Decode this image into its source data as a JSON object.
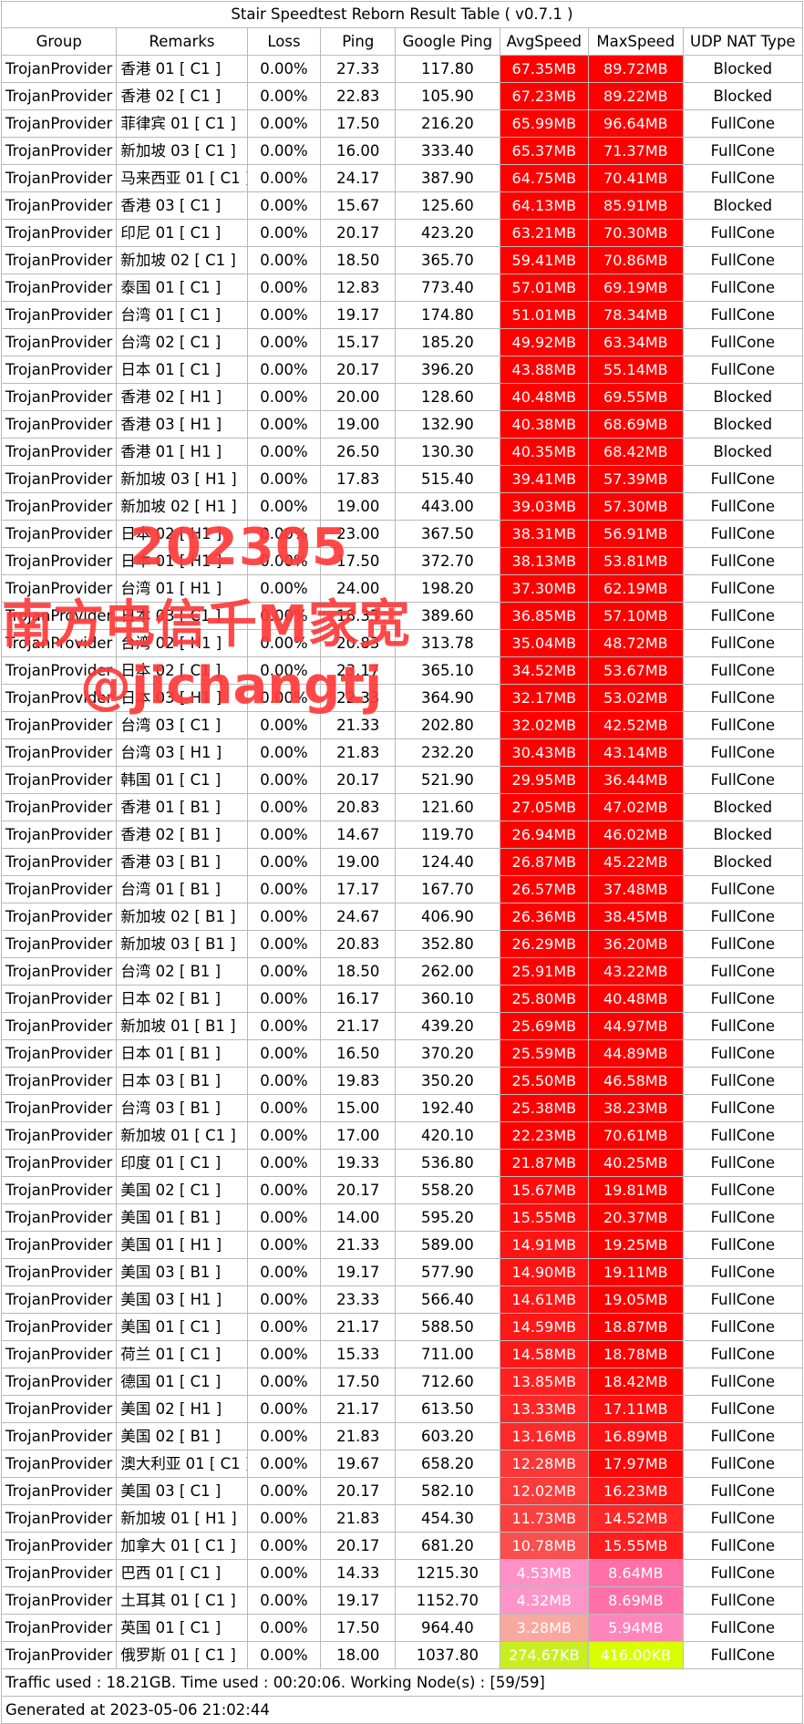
{
  "title": "Stair Speedtest Reborn Result Table ( v0.7.1 )",
  "headers": [
    "Group",
    "Remarks",
    "Loss",
    "Ping",
    "Google Ping",
    "AvgSpeed",
    "MaxSpeed",
    "UDP NAT Type"
  ],
  "rows": [
    {
      "group": "TrojanProvider",
      "remarks": "香港 01 [ C1 ]",
      "loss": "0.00%",
      "ping": "27.33",
      "gping": "117.80",
      "avg": "67.35MB",
      "avg_color": "#ff0000",
      "max": "89.72MB",
      "max_color": "#ff0000",
      "nat": "Blocked"
    },
    {
      "group": "TrojanProvider",
      "remarks": "香港 02 [ C1 ]",
      "loss": "0.00%",
      "ping": "22.83",
      "gping": "105.90",
      "avg": "67.23MB",
      "avg_color": "#ff0000",
      "max": "89.22MB",
      "max_color": "#ff0000",
      "nat": "Blocked"
    },
    {
      "group": "TrojanProvider",
      "remarks": "菲律宾 01 [ C1 ]",
      "loss": "0.00%",
      "ping": "17.50",
      "gping": "216.20",
      "avg": "65.99MB",
      "avg_color": "#ff0000",
      "max": "96.64MB",
      "max_color": "#ff0000",
      "nat": "FullCone"
    },
    {
      "group": "TrojanProvider",
      "remarks": "新加坡 03 [ C1 ]",
      "loss": "0.00%",
      "ping": "16.00",
      "gping": "333.40",
      "avg": "65.37MB",
      "avg_color": "#ff0000",
      "max": "71.37MB",
      "max_color": "#ff0000",
      "nat": "FullCone"
    },
    {
      "group": "TrojanProvider",
      "remarks": "马来西亚 01 [ C1 ]",
      "loss": "0.00%",
      "ping": "24.17",
      "gping": "387.90",
      "avg": "64.75MB",
      "avg_color": "#ff0000",
      "max": "70.41MB",
      "max_color": "#ff0000",
      "nat": "FullCone"
    },
    {
      "group": "TrojanProvider",
      "remarks": "香港 03 [ C1 ]",
      "loss": "0.00%",
      "ping": "15.67",
      "gping": "125.60",
      "avg": "64.13MB",
      "avg_color": "#ff0000",
      "max": "85.91MB",
      "max_color": "#ff0000",
      "nat": "Blocked"
    },
    {
      "group": "TrojanProvider",
      "remarks": "印尼 01 [ C1 ]",
      "loss": "0.00%",
      "ping": "20.17",
      "gping": "423.20",
      "avg": "63.21MB",
      "avg_color": "#ff0000",
      "max": "70.30MB",
      "max_color": "#ff0000",
      "nat": "FullCone"
    },
    {
      "group": "TrojanProvider",
      "remarks": "新加坡 02 [ C1 ]",
      "loss": "0.00%",
      "ping": "18.50",
      "gping": "365.70",
      "avg": "59.41MB",
      "avg_color": "#ff0000",
      "max": "70.86MB",
      "max_color": "#ff0000",
      "nat": "FullCone"
    },
    {
      "group": "TrojanProvider",
      "remarks": "泰国 01 [ C1 ]",
      "loss": "0.00%",
      "ping": "12.83",
      "gping": "773.40",
      "avg": "57.01MB",
      "avg_color": "#ff0000",
      "max": "69.19MB",
      "max_color": "#ff0000",
      "nat": "FullCone"
    },
    {
      "group": "TrojanProvider",
      "remarks": "台湾 01 [ C1 ]",
      "loss": "0.00%",
      "ping": "19.17",
      "gping": "174.80",
      "avg": "51.01MB",
      "avg_color": "#ff0000",
      "max": "78.34MB",
      "max_color": "#ff0000",
      "nat": "FullCone"
    },
    {
      "group": "TrojanProvider",
      "remarks": "台湾 02 [ C1 ]",
      "loss": "0.00%",
      "ping": "15.17",
      "gping": "185.20",
      "avg": "49.92MB",
      "avg_color": "#ff0000",
      "max": "63.34MB",
      "max_color": "#ff0000",
      "nat": "FullCone"
    },
    {
      "group": "TrojanProvider",
      "remarks": "日本 01 [ C1 ]",
      "loss": "0.00%",
      "ping": "20.17",
      "gping": "396.20",
      "avg": "43.88MB",
      "avg_color": "#ff0000",
      "max": "55.14MB",
      "max_color": "#ff0000",
      "nat": "FullCone"
    },
    {
      "group": "TrojanProvider",
      "remarks": "香港 02 [ H1 ]",
      "loss": "0.00%",
      "ping": "20.00",
      "gping": "128.60",
      "avg": "40.48MB",
      "avg_color": "#ff0000",
      "max": "69.55MB",
      "max_color": "#ff0000",
      "nat": "Blocked"
    },
    {
      "group": "TrojanProvider",
      "remarks": "香港 03 [ H1 ]",
      "loss": "0.00%",
      "ping": "19.00",
      "gping": "132.90",
      "avg": "40.38MB",
      "avg_color": "#ff0000",
      "max": "68.69MB",
      "max_color": "#ff0000",
      "nat": "Blocked"
    },
    {
      "group": "TrojanProvider",
      "remarks": "香港 01 [ H1 ]",
      "loss": "0.00%",
      "ping": "26.50",
      "gping": "130.30",
      "avg": "40.35MB",
      "avg_color": "#ff0000",
      "max": "68.42MB",
      "max_color": "#ff0000",
      "nat": "Blocked"
    },
    {
      "group": "TrojanProvider",
      "remarks": "新加坡 03 [ H1 ]",
      "loss": "0.00%",
      "ping": "17.83",
      "gping": "515.40",
      "avg": "39.41MB",
      "avg_color": "#ff0000",
      "max": "57.39MB",
      "max_color": "#ff0000",
      "nat": "FullCone"
    },
    {
      "group": "TrojanProvider",
      "remarks": "新加坡 02 [ H1 ]",
      "loss": "0.00%",
      "ping": "19.00",
      "gping": "443.00",
      "avg": "39.03MB",
      "avg_color": "#ff0000",
      "max": "57.30MB",
      "max_color": "#ff0000",
      "nat": "FullCone"
    },
    {
      "group": "TrojanProvider",
      "remarks": "日本 02 [ H1 ]",
      "loss": "0.00%",
      "ping": "23.00",
      "gping": "367.50",
      "avg": "38.31MB",
      "avg_color": "#ff0000",
      "max": "56.91MB",
      "max_color": "#ff0000",
      "nat": "FullCone"
    },
    {
      "group": "TrojanProvider",
      "remarks": "日本 01 [ H1 ]",
      "loss": "0.00%",
      "ping": "17.50",
      "gping": "372.70",
      "avg": "38.13MB",
      "avg_color": "#ff0000",
      "max": "53.81MB",
      "max_color": "#ff0000",
      "nat": "FullCone"
    },
    {
      "group": "TrojanProvider",
      "remarks": "台湾 01 [ H1 ]",
      "loss": "0.00%",
      "ping": "24.00",
      "gping": "198.20",
      "avg": "37.30MB",
      "avg_color": "#ff0000",
      "max": "62.19MB",
      "max_color": "#ff0000",
      "nat": "FullCone"
    },
    {
      "group": "TrojanProvider",
      "remarks": "日本 03 [ C1 ]",
      "loss": "0.00%",
      "ping": "18.33",
      "gping": "389.60",
      "avg": "36.85MB",
      "avg_color": "#ff0000",
      "max": "57.10MB",
      "max_color": "#ff0000",
      "nat": "FullCone"
    },
    {
      "group": "TrojanProvider",
      "remarks": "台湾 02 [ H1 ]",
      "loss": "0.00%",
      "ping": "20.83",
      "gping": "313.78",
      "avg": "35.04MB",
      "avg_color": "#ff0000",
      "max": "48.72MB",
      "max_color": "#ff0000",
      "nat": "FullCone"
    },
    {
      "group": "TrojanProvider",
      "remarks": "日本 02 [ C1 ]",
      "loss": "0.00%",
      "ping": "23.17",
      "gping": "365.10",
      "avg": "34.52MB",
      "avg_color": "#ff0000",
      "max": "53.67MB",
      "max_color": "#ff0000",
      "nat": "FullCone"
    },
    {
      "group": "TrojanProvider",
      "remarks": "日本 03 [ H1 ]",
      "loss": "0.00%",
      "ping": "22.33",
      "gping": "364.90",
      "avg": "32.17MB",
      "avg_color": "#ff0000",
      "max": "53.02MB",
      "max_color": "#ff0000",
      "nat": "FullCone"
    },
    {
      "group": "TrojanProvider",
      "remarks": "台湾 03 [ C1 ]",
      "loss": "0.00%",
      "ping": "21.33",
      "gping": "202.80",
      "avg": "32.02MB",
      "avg_color": "#ff0000",
      "max": "42.52MB",
      "max_color": "#ff0000",
      "nat": "FullCone"
    },
    {
      "group": "TrojanProvider",
      "remarks": "台湾 03 [ H1 ]",
      "loss": "0.00%",
      "ping": "21.83",
      "gping": "232.20",
      "avg": "30.43MB",
      "avg_color": "#ff0000",
      "max": "43.14MB",
      "max_color": "#ff0000",
      "nat": "FullCone"
    },
    {
      "group": "TrojanProvider",
      "remarks": "韩国 01 [ C1 ]",
      "loss": "0.00%",
      "ping": "20.17",
      "gping": "521.90",
      "avg": "29.95MB",
      "avg_color": "#ff0000",
      "max": "36.44MB",
      "max_color": "#ff0000",
      "nat": "FullCone"
    },
    {
      "group": "TrojanProvider",
      "remarks": "香港 01 [ B1 ]",
      "loss": "0.00%",
      "ping": "20.83",
      "gping": "121.60",
      "avg": "27.05MB",
      "avg_color": "#ff0000",
      "max": "47.02MB",
      "max_color": "#ff0000",
      "nat": "Blocked"
    },
    {
      "group": "TrojanProvider",
      "remarks": "香港 02 [ B1 ]",
      "loss": "0.00%",
      "ping": "14.67",
      "gping": "119.70",
      "avg": "26.94MB",
      "avg_color": "#ff0000",
      "max": "46.02MB",
      "max_color": "#ff0000",
      "nat": "Blocked"
    },
    {
      "group": "TrojanProvider",
      "remarks": "香港 03 [ B1 ]",
      "loss": "0.00%",
      "ping": "19.00",
      "gping": "124.40",
      "avg": "26.87MB",
      "avg_color": "#ff0000",
      "max": "45.22MB",
      "max_color": "#ff0000",
      "nat": "Blocked"
    },
    {
      "group": "TrojanProvider",
      "remarks": "台湾 01 [ B1 ]",
      "loss": "0.00%",
      "ping": "17.17",
      "gping": "167.70",
      "avg": "26.57MB",
      "avg_color": "#ff0000",
      "max": "37.48MB",
      "max_color": "#ff0000",
      "nat": "FullCone"
    },
    {
      "group": "TrojanProvider",
      "remarks": "新加坡 02 [ B1 ]",
      "loss": "0.00%",
      "ping": "24.67",
      "gping": "406.90",
      "avg": "26.36MB",
      "avg_color": "#ff0000",
      "max": "38.45MB",
      "max_color": "#ff0000",
      "nat": "FullCone"
    },
    {
      "group": "TrojanProvider",
      "remarks": "新加坡 03 [ B1 ]",
      "loss": "0.00%",
      "ping": "20.83",
      "gping": "352.80",
      "avg": "26.29MB",
      "avg_color": "#ff0000",
      "max": "36.20MB",
      "max_color": "#ff0000",
      "nat": "FullCone"
    },
    {
      "group": "TrojanProvider",
      "remarks": "台湾 02 [ B1 ]",
      "loss": "0.00%",
      "ping": "18.50",
      "gping": "262.00",
      "avg": "25.91MB",
      "avg_color": "#ff0000",
      "max": "43.22MB",
      "max_color": "#ff0000",
      "nat": "FullCone"
    },
    {
      "group": "TrojanProvider",
      "remarks": "日本 02 [ B1 ]",
      "loss": "0.00%",
      "ping": "16.17",
      "gping": "360.10",
      "avg": "25.80MB",
      "avg_color": "#ff0000",
      "max": "40.48MB",
      "max_color": "#ff0000",
      "nat": "FullCone"
    },
    {
      "group": "TrojanProvider",
      "remarks": "新加坡 01 [ B1 ]",
      "loss": "0.00%",
      "ping": "21.17",
      "gping": "439.20",
      "avg": "25.69MB",
      "avg_color": "#ff0000",
      "max": "44.97MB",
      "max_color": "#ff0000",
      "nat": "FullCone"
    },
    {
      "group": "TrojanProvider",
      "remarks": "日本 01 [ B1 ]",
      "loss": "0.00%",
      "ping": "16.50",
      "gping": "370.20",
      "avg": "25.59MB",
      "avg_color": "#ff0000",
      "max": "44.89MB",
      "max_color": "#ff0000",
      "nat": "FullCone"
    },
    {
      "group": "TrojanProvider",
      "remarks": "日本 03 [ B1 ]",
      "loss": "0.00%",
      "ping": "19.83",
      "gping": "350.20",
      "avg": "25.50MB",
      "avg_color": "#ff0000",
      "max": "46.58MB",
      "max_color": "#ff0000",
      "nat": "FullCone"
    },
    {
      "group": "TrojanProvider",
      "remarks": "台湾 03 [ B1 ]",
      "loss": "0.00%",
      "ping": "15.00",
      "gping": "192.40",
      "avg": "25.38MB",
      "avg_color": "#ff0000",
      "max": "38.23MB",
      "max_color": "#ff0000",
      "nat": "FullCone"
    },
    {
      "group": "TrojanProvider",
      "remarks": "新加坡 01 [ C1 ]",
      "loss": "0.00%",
      "ping": "17.00",
      "gping": "420.10",
      "avg": "22.23MB",
      "avg_color": "#ff0000",
      "max": "70.61MB",
      "max_color": "#ff0000",
      "nat": "FullCone"
    },
    {
      "group": "TrojanProvider",
      "remarks": "印度 01 [ C1 ]",
      "loss": "0.00%",
      "ping": "19.33",
      "gping": "536.80",
      "avg": "21.87MB",
      "avg_color": "#ff0000",
      "max": "40.25MB",
      "max_color": "#ff0000",
      "nat": "FullCone"
    },
    {
      "group": "TrojanProvider",
      "remarks": "美国 02 [ C1 ]",
      "loss": "0.00%",
      "ping": "20.17",
      "gping": "558.20",
      "avg": "15.67MB",
      "avg_color": "#ff0c0c",
      "max": "19.81MB",
      "max_color": "#ff0000",
      "nat": "FullCone"
    },
    {
      "group": "TrojanProvider",
      "remarks": "美国 01 [ B1 ]",
      "loss": "0.00%",
      "ping": "14.00",
      "gping": "595.20",
      "avg": "15.55MB",
      "avg_color": "#ff0d0d",
      "max": "20.37MB",
      "max_color": "#ff0000",
      "nat": "FullCone"
    },
    {
      "group": "TrojanProvider",
      "remarks": "美国 01 [ H1 ]",
      "loss": "0.00%",
      "ping": "21.33",
      "gping": "589.00",
      "avg": "14.91MB",
      "avg_color": "#ff1414",
      "max": "19.25MB",
      "max_color": "#ff0000",
      "nat": "FullCone"
    },
    {
      "group": "TrojanProvider",
      "remarks": "美国 03 [ B1 ]",
      "loss": "0.00%",
      "ping": "19.17",
      "gping": "577.90",
      "avg": "14.90MB",
      "avg_color": "#ff1414",
      "max": "19.11MB",
      "max_color": "#ff0000",
      "nat": "FullCone"
    },
    {
      "group": "TrojanProvider",
      "remarks": "美国 03 [ H1 ]",
      "loss": "0.00%",
      "ping": "23.33",
      "gping": "566.40",
      "avg": "14.61MB",
      "avg_color": "#ff1717",
      "max": "19.05MB",
      "max_color": "#ff0000",
      "nat": "FullCone"
    },
    {
      "group": "TrojanProvider",
      "remarks": "美国 01 [ C1 ]",
      "loss": "0.00%",
      "ping": "21.17",
      "gping": "588.50",
      "avg": "14.59MB",
      "avg_color": "#ff1818",
      "max": "18.87MB",
      "max_color": "#ff0000",
      "nat": "FullCone"
    },
    {
      "group": "TrojanProvider",
      "remarks": "荷兰 01 [ C1 ]",
      "loss": "0.00%",
      "ping": "15.33",
      "gping": "711.00",
      "avg": "14.58MB",
      "avg_color": "#ff1818",
      "max": "18.78MB",
      "max_color": "#ff0000",
      "nat": "FullCone"
    },
    {
      "group": "TrojanProvider",
      "remarks": "德国 01 [ C1 ]",
      "loss": "0.00%",
      "ping": "17.50",
      "gping": "712.60",
      "avg": "13.85MB",
      "avg_color": "#ff2121",
      "max": "18.42MB",
      "max_color": "#ff0303",
      "nat": "FullCone"
    },
    {
      "group": "TrojanProvider",
      "remarks": "美国 02 [ H1 ]",
      "loss": "0.00%",
      "ping": "21.17",
      "gping": "613.50",
      "avg": "13.33MB",
      "avg_color": "#fe2828",
      "max": "17.11MB",
      "max_color": "#ff0f0f",
      "nat": "FullCone"
    },
    {
      "group": "TrojanProvider",
      "remarks": "美国 02 [ B1 ]",
      "loss": "0.00%",
      "ping": "21.83",
      "gping": "603.20",
      "avg": "13.16MB",
      "avg_color": "#fe2a2a",
      "max": "16.89MB",
      "max_color": "#ff1111",
      "nat": "FullCone"
    },
    {
      "group": "TrojanProvider",
      "remarks": "澳大利亚 01 [ C1 ]",
      "loss": "0.00%",
      "ping": "19.67",
      "gping": "658.20",
      "avg": "12.28MB",
      "avg_color": "#fc3737",
      "max": "17.97MB",
      "max_color": "#ff0707",
      "nat": "FullCone"
    },
    {
      "group": "TrojanProvider",
      "remarks": "美国 03 [ C1 ]",
      "loss": "0.00%",
      "ping": "20.17",
      "gping": "582.10",
      "avg": "12.02MB",
      "avg_color": "#fc3b3b",
      "max": "16.23MB",
      "max_color": "#ff1616",
      "nat": "FullCone"
    },
    {
      "group": "TrojanProvider",
      "remarks": "新加坡 01 [ H1 ]",
      "loss": "0.00%",
      "ping": "21.83",
      "gping": "454.30",
      "avg": "11.73MB",
      "avg_color": "#fb4040",
      "max": "14.52MB",
      "max_color": "#ff2727",
      "nat": "FullCone"
    },
    {
      "group": "TrojanProvider",
      "remarks": "加拿大 01 [ C1 ]",
      "loss": "0.00%",
      "ping": "20.17",
      "gping": "681.20",
      "avg": "10.78MB",
      "avg_color": "#f94f4f",
      "max": "15.55MB",
      "max_color": "#ff1d1d",
      "nat": "FullCone"
    },
    {
      "group": "TrojanProvider",
      "remarks": "巴西 01 [ C1 ]",
      "loss": "0.00%",
      "ping": "14.33",
      "gping": "1215.30",
      "avg": "4.53MB",
      "avg_color": "#ff90c8",
      "max": "8.64MB",
      "max_color": "#ff70a8",
      "nat": "FullCone"
    },
    {
      "group": "TrojanProvider",
      "remarks": "土耳其 01 [ C1 ]",
      "loss": "0.00%",
      "ping": "19.17",
      "gping": "1152.70",
      "avg": "4.32MB",
      "avg_color": "#ff94ca",
      "max": "8.69MB",
      "max_color": "#ff70a8",
      "nat": "FullCone"
    },
    {
      "group": "TrojanProvider",
      "remarks": "英国 01 [ C1 ]",
      "loss": "0.00%",
      "ping": "17.50",
      "gping": "964.40",
      "avg": "3.28MB",
      "avg_color": "#f9a8a0",
      "max": "5.94MB",
      "max_color": "#ff86bc",
      "nat": "FullCone"
    },
    {
      "group": "TrojanProvider",
      "remarks": "俄罗斯 01 [ C1 ]",
      "loss": "0.00%",
      "ping": "18.00",
      "gping": "1037.80",
      "avg": "274.67KB",
      "avg_color": "#c8ee22",
      "max": "416.00KB",
      "max_color": "#d8ff00",
      "nat": "FullCone"
    }
  ],
  "footer_traffic": "Traffic used : 18.21GB. Time used : 00:20:06. Working Node(s) : [59/59]",
  "footer_generated": "Generated at 2023-05-06 21:02:44",
  "watermark": {
    "line1": "202305",
    "line2": "南方电信千M家宽",
    "line3": "@jichangtj",
    "color": "#ff3a3a"
  }
}
